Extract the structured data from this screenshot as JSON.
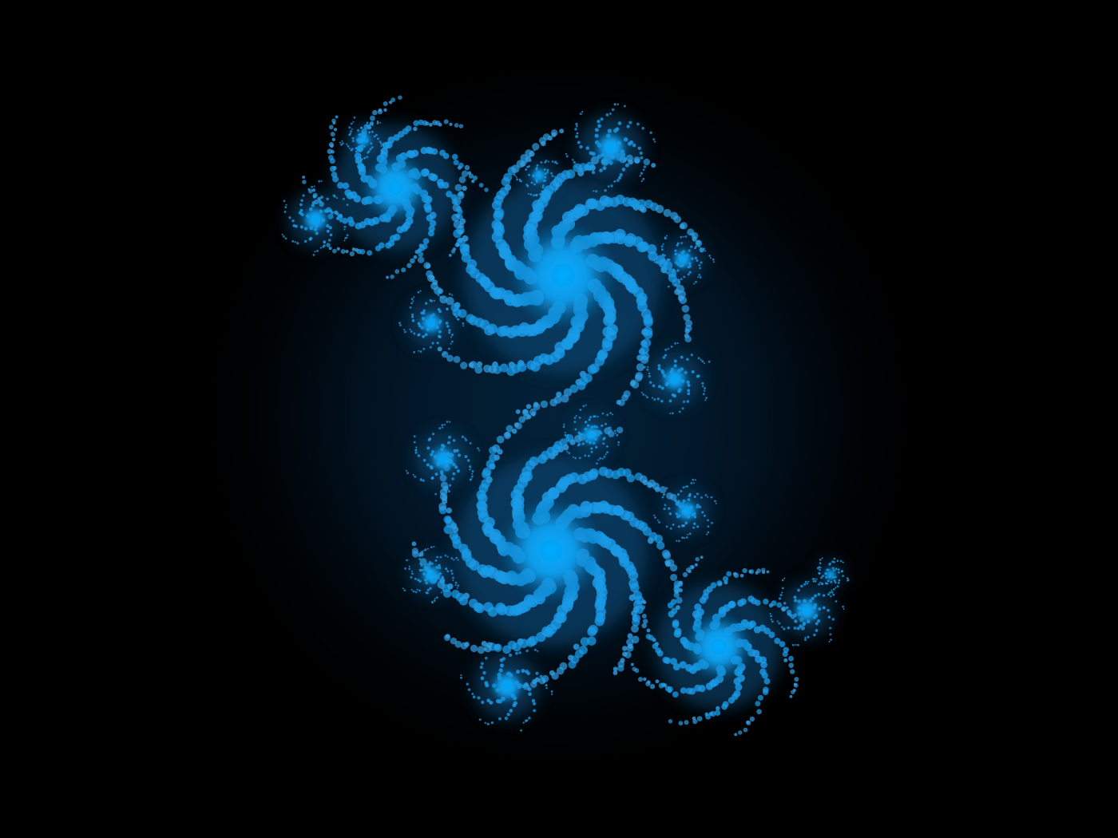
{
  "image": {
    "subject": "julia-set-fractal",
    "colors": {
      "background": "#000000",
      "halo": "#021a2e",
      "fractal_core": "#00a6ff",
      "fractal_mid": "#1a9be8",
      "fractal_edge": "#2ea0e6",
      "fractal_shadow": "#0a4f80"
    }
  }
}
